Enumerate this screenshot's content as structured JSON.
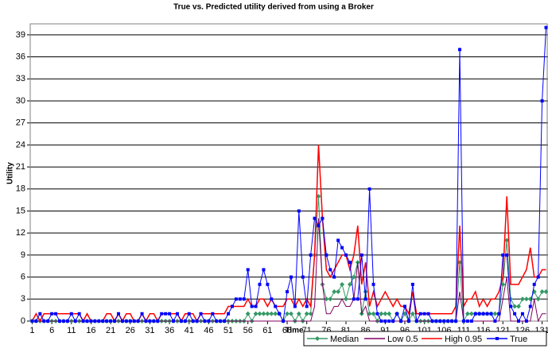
{
  "chart_data": {
    "type": "line",
    "title": "True vs. Predicted utility derived from using a Broker",
    "x_label": "Time",
    "y_label": "Utility",
    "x": [
      1,
      2,
      3,
      4,
      5,
      6,
      7,
      8,
      9,
      10,
      11,
      12,
      13,
      14,
      15,
      16,
      17,
      18,
      19,
      20,
      21,
      22,
      23,
      24,
      25,
      26,
      27,
      28,
      29,
      30,
      31,
      32,
      33,
      34,
      35,
      36,
      37,
      38,
      39,
      40,
      41,
      42,
      43,
      44,
      45,
      46,
      47,
      48,
      49,
      50,
      51,
      52,
      53,
      54,
      55,
      56,
      57,
      58,
      59,
      60,
      61,
      62,
      63,
      64,
      65,
      66,
      67,
      68,
      69,
      70,
      71,
      72,
      73,
      74,
      75,
      76,
      77,
      78,
      79,
      80,
      81,
      82,
      83,
      84,
      85,
      86,
      87,
      88,
      89,
      90,
      91,
      92,
      93,
      94,
      95,
      96,
      97,
      98,
      99,
      100,
      101,
      102,
      103,
      104,
      105,
      106,
      107,
      108,
      109,
      110,
      111,
      112,
      113,
      114,
      115,
      116,
      117,
      118,
      119,
      120,
      121,
      122,
      123,
      124,
      125,
      126,
      127,
      128,
      129,
      130,
      131,
      132
    ],
    "xlim": [
      0.5,
      132.5
    ],
    "xticks": [
      1,
      6,
      11,
      16,
      21,
      26,
      31,
      36,
      41,
      46,
      51,
      56,
      61,
      66,
      71,
      76,
      81,
      86,
      91,
      96,
      101,
      106,
      111,
      116,
      121,
      126,
      131
    ],
    "ylim": [
      0,
      40.5
    ],
    "yticks": [
      0,
      3,
      6,
      9,
      12,
      15,
      18,
      21,
      24,
      27,
      30,
      33,
      36,
      39
    ],
    "grid": true,
    "legend": "bottom-right",
    "series": [
      {
        "name": "Median",
        "color": "#339966",
        "marker": "diamond",
        "values": [
          0,
          0,
          0,
          0,
          0,
          0,
          0,
          0,
          0,
          0,
          0,
          0,
          0,
          0,
          0,
          0,
          0,
          0,
          0,
          0,
          0,
          0,
          0,
          0,
          0,
          0,
          0,
          0,
          0,
          0,
          0,
          0,
          0,
          0,
          0,
          0,
          0,
          0,
          0,
          0,
          0,
          0,
          0,
          0,
          0,
          0,
          0,
          0,
          0,
          0,
          0,
          0,
          0,
          0,
          0,
          1,
          0,
          1,
          1,
          1,
          1,
          1,
          1,
          1,
          0,
          1,
          1,
          0,
          1,
          0,
          1,
          1,
          9,
          17,
          5,
          3,
          3,
          4,
          4,
          5,
          3,
          5,
          6,
          8,
          1,
          4,
          1,
          1,
          0,
          1,
          1,
          1,
          0,
          1,
          0,
          1,
          0,
          1,
          0,
          0,
          0,
          0,
          0,
          0,
          0,
          0,
          0,
          0,
          0,
          8,
          0,
          1,
          1,
          1,
          1,
          1,
          1,
          1,
          1,
          1,
          5,
          11,
          3,
          2,
          2,
          3,
          3,
          3,
          4,
          3,
          4,
          4
        ]
      },
      {
        "name": "Low 0.5",
        "color": "#800060",
        "marker": "none",
        "values": [
          0,
          0,
          0,
          0,
          0,
          0,
          0,
          0,
          0,
          0,
          0,
          0,
          0,
          0,
          0,
          0,
          0,
          0,
          0,
          0,
          0,
          0,
          0,
          0,
          0,
          0,
          0,
          0,
          0,
          0,
          0,
          0,
          0,
          0,
          0,
          0,
          0,
          0,
          0,
          0,
          0,
          0,
          0,
          0,
          0,
          0,
          0,
          0,
          0,
          0,
          0,
          0,
          0,
          0,
          0,
          0,
          0,
          0,
          0,
          0,
          0,
          0,
          0,
          0,
          0,
          0,
          0,
          0,
          0,
          0,
          0,
          0,
          2,
          14,
          5,
          1,
          1,
          2,
          2,
          3,
          2,
          2,
          3,
          8,
          1,
          2,
          0,
          0,
          0,
          0,
          0,
          0,
          0,
          0,
          0,
          0,
          0,
          4,
          0,
          0,
          0,
          0,
          0,
          0,
          0,
          0,
          0,
          0,
          0,
          4,
          0,
          0,
          0,
          0,
          0,
          0,
          0,
          0,
          0,
          0,
          3,
          6,
          0,
          0,
          0,
          0,
          0,
          0,
          3,
          0,
          1,
          1
        ]
      },
      {
        "name": "High 0.95",
        "color": "#ff0000",
        "marker": "none",
        "values": [
          0,
          1,
          0,
          1,
          1,
          1,
          1,
          1,
          1,
          1,
          1,
          1,
          1,
          0,
          1,
          0,
          0,
          0,
          0,
          1,
          1,
          0,
          1,
          0,
          1,
          1,
          0,
          0,
          1,
          0,
          1,
          1,
          0,
          1,
          1,
          1,
          1,
          1,
          0,
          1,
          1,
          1,
          0,
          1,
          1,
          1,
          1,
          1,
          1,
          1,
          2,
          2,
          2,
          2,
          2,
          3,
          2,
          2,
          3,
          3,
          2,
          3,
          2,
          2,
          2,
          3,
          3,
          2,
          3,
          2,
          3,
          2,
          9,
          24,
          14,
          7,
          6,
          7,
          8,
          9,
          9,
          7,
          9,
          13,
          5,
          8,
          2,
          4,
          2,
          3,
          4,
          3,
          2,
          3,
          2,
          2,
          1,
          4,
          1,
          1,
          1,
          1,
          1,
          1,
          1,
          1,
          1,
          1,
          2,
          13,
          2,
          3,
          3,
          4,
          2,
          3,
          2,
          3,
          3,
          4,
          6,
          17,
          5,
          5,
          5,
          6,
          7,
          10,
          6,
          6,
          7,
          7
        ]
      },
      {
        "name": "True",
        "color": "#0000ff",
        "marker": "square",
        "values": [
          0,
          0,
          1,
          0,
          0,
          1,
          1,
          0,
          0,
          0,
          1,
          0,
          1,
          0,
          0,
          0,
          0,
          0,
          0,
          0,
          0,
          0,
          1,
          0,
          0,
          0,
          0,
          0,
          1,
          0,
          0,
          0,
          0,
          1,
          1,
          1,
          0,
          1,
          0,
          0,
          1,
          0,
          0,
          1,
          0,
          0,
          1,
          0,
          0,
          0,
          1,
          2,
          3,
          3,
          3,
          7,
          2,
          2,
          5,
          7,
          5,
          3,
          2,
          1,
          0,
          4,
          6,
          2,
          15,
          6,
          2,
          9,
          14,
          13,
          14,
          9,
          7,
          6,
          11,
          10,
          9,
          8,
          3,
          3,
          9,
          3,
          18,
          5,
          1,
          0,
          0,
          0,
          0,
          1,
          0,
          2,
          0,
          5,
          0,
          1,
          1,
          1,
          0,
          0,
          0,
          0,
          0,
          0,
          0,
          37,
          0,
          0,
          0,
          1,
          1,
          1,
          1,
          1,
          0,
          1,
          9,
          9,
          2,
          1,
          0,
          1,
          0,
          2,
          5,
          6,
          30,
          40
        ]
      }
    ]
  }
}
